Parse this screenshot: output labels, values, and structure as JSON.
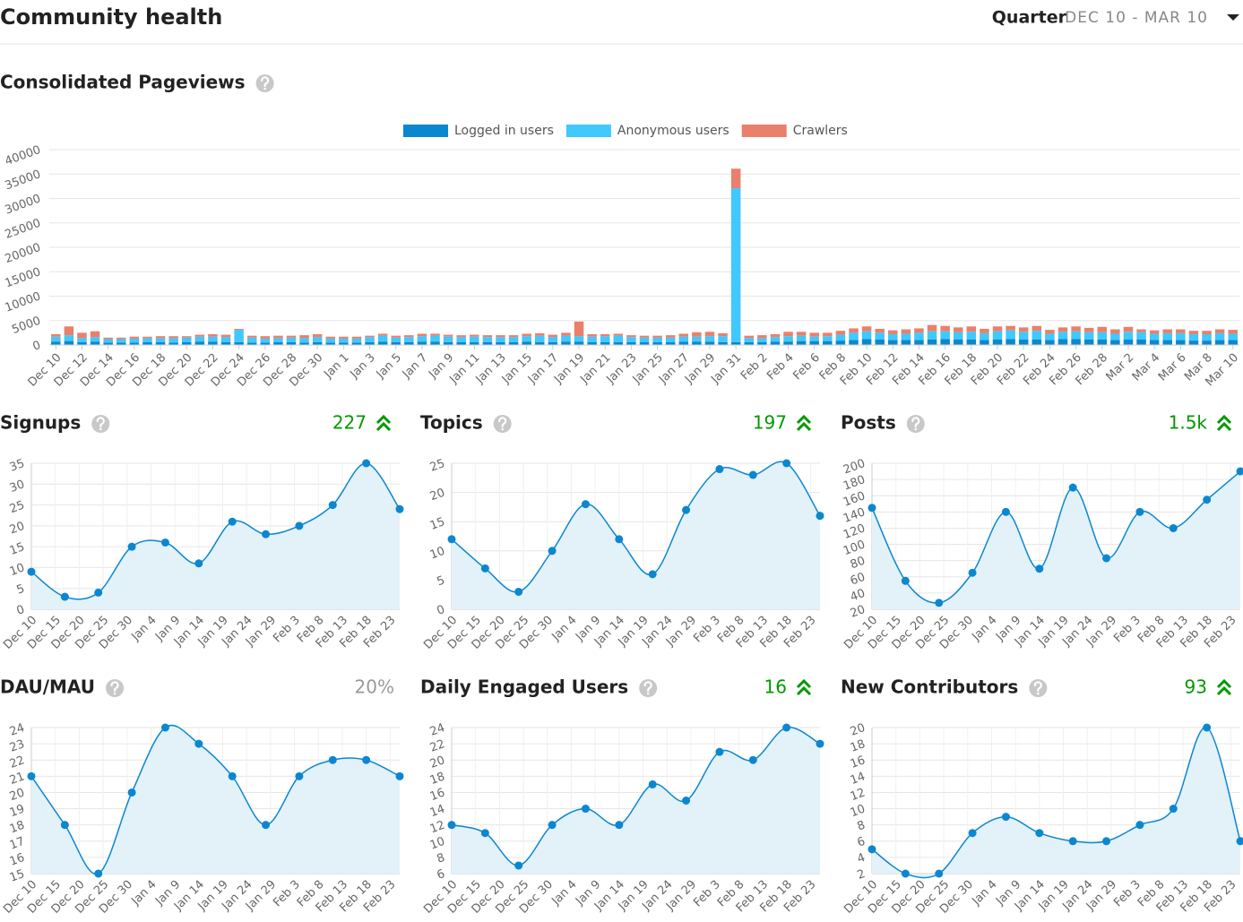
{
  "header": {
    "title": "Community health",
    "period_label": "Quarter",
    "period": "DEC 10 - MAR 10"
  },
  "chart_data": [
    {
      "type": "stacked_bar",
      "title": "Consolidated Pageviews",
      "legend": "top",
      "categories": [
        "Dec 10",
        null,
        "Dec 12",
        null,
        "Dec 14",
        null,
        "Dec 16",
        null,
        "Dec 18",
        null,
        "Dec 20",
        null,
        "Dec 22",
        null,
        "Dec 24",
        null,
        "Dec 26",
        null,
        "Dec 28",
        null,
        "Dec 30",
        null,
        "Jan 1",
        null,
        "Jan 3",
        null,
        "Jan 5",
        null,
        "Jan 7",
        null,
        "Jan 9",
        null,
        "Jan 11",
        null,
        "Jan 13",
        null,
        "Jan 15",
        null,
        "Jan 17",
        null,
        "Jan 19",
        null,
        "Jan 21",
        null,
        "Jan 23",
        null,
        "Jan 25",
        null,
        "Jan 27",
        null,
        "Jan 29",
        null,
        "Jan 31",
        null,
        "Feb 2",
        null,
        "Feb 4",
        null,
        "Feb 6",
        null,
        "Feb 8",
        null,
        "Feb 10",
        null,
        "Feb 12",
        null,
        "Feb 14",
        null,
        "Feb 16",
        null,
        "Feb 18",
        null,
        "Feb 20",
        null,
        "Feb 22",
        null,
        "Feb 24",
        null,
        "Feb 26",
        null,
        "Feb 28",
        null,
        "Mar 2",
        null,
        "Mar 4",
        null,
        "Mar 6",
        null,
        "Mar 8",
        null,
        "Mar 10"
      ],
      "series": [
        {
          "name": "Logged in users",
          "color": "#0b87d0",
          "values": [
            700,
            800,
            600,
            700,
            500,
            500,
            500,
            600,
            600,
            500,
            600,
            700,
            700,
            600,
            600,
            500,
            500,
            600,
            600,
            500,
            600,
            500,
            500,
            500,
            600,
            700,
            600,
            600,
            700,
            700,
            600,
            600,
            600,
            600,
            600,
            600,
            700,
            600,
            600,
            700,
            700,
            600,
            600,
            600,
            600,
            600,
            600,
            600,
            700,
            700,
            700,
            600,
            600,
            600,
            600,
            700,
            700,
            800,
            800,
            800,
            900,
            1000,
            1200,
            1100,
            1000,
            1000,
            1000,
            1100,
            1200,
            1100,
            1100,
            1000,
            1100,
            1200,
            1100,
            1100,
            1000,
            1200,
            1200,
            1100,
            1100,
            1000,
            1100,
            1100,
            1000,
            1000,
            1000,
            900,
            900,
            1000,
            1000
          ]
        },
        {
          "name": "Anonymous users",
          "color": "#40c8ff",
          "values": [
            1000,
            1200,
            800,
            900,
            700,
            700,
            800,
            800,
            800,
            900,
            900,
            1000,
            1000,
            1000,
            2500,
            1000,
            800,
            800,
            900,
            900,
            1000,
            800,
            800,
            800,
            1000,
            1200,
            900,
            1000,
            1100,
            1200,
            1100,
            1000,
            1100,
            1000,
            1000,
            1000,
            1100,
            1300,
            1000,
            1200,
            1100,
            1100,
            1200,
            1300,
            1000,
            900,
            900,
            900,
            1000,
            1000,
            1100,
            1200,
            31500,
            800,
            800,
            900,
            1100,
            1100,
            900,
            1000,
            1200,
            1500,
            1600,
            1400,
            1200,
            1300,
            1500,
            1700,
            1600,
            1500,
            1600,
            1400,
            1700,
            1800,
            1600,
            1800,
            1300,
            1500,
            1600,
            1500,
            1500,
            1300,
            1600,
            1500,
            1300,
            1400,
            1400,
            1300,
            1300,
            1400,
            1300
          ]
        },
        {
          "name": "Crawlers",
          "color": "#e9806c",
          "values": [
            500,
            1800,
            1100,
            1200,
            300,
            300,
            400,
            300,
            400,
            400,
            300,
            400,
            500,
            500,
            200,
            400,
            500,
            500,
            400,
            600,
            600,
            400,
            400,
            400,
            300,
            400,
            400,
            400,
            500,
            400,
            400,
            400,
            400,
            400,
            400,
            400,
            500,
            500,
            500,
            600,
            3000,
            500,
            400,
            400,
            400,
            400,
            400,
            500,
            600,
            900,
            900,
            600,
            4000,
            500,
            600,
            600,
            900,
            800,
            800,
            700,
            800,
            900,
            1000,
            800,
            800,
            900,
            900,
            1300,
            1100,
            1000,
            1100,
            900,
            1000,
            900,
            900,
            1000,
            800,
            900,
            1000,
            900,
            1100,
            900,
            1000,
            600,
            700,
            800,
            800,
            700,
            700,
            800,
            800
          ]
        }
      ],
      "ylim": [
        0,
        40000
      ],
      "yticks": [
        0,
        5000,
        10000,
        15000,
        20000,
        25000,
        30000,
        35000,
        40000
      ],
      "grid": true
    },
    {
      "type": "line",
      "title": "Signups",
      "headline": "227",
      "headline_color": "#009900",
      "trend": "up",
      "color": "#0b87d0",
      "x": [
        0,
        7,
        14,
        21,
        28,
        35,
        42,
        49,
        56,
        63,
        70,
        77
      ],
      "values": [
        9,
        3,
        4,
        15,
        16,
        11,
        21,
        18,
        20,
        25,
        35,
        24
      ],
      "xlim": [
        0,
        77
      ],
      "xticks": [
        {
          "value": 0,
          "label": "Dec 10"
        },
        {
          "value": 5,
          "label": "Dec 15"
        },
        {
          "value": 10,
          "label": "Dec 20"
        },
        {
          "value": 15,
          "label": "Dec 25"
        },
        {
          "value": 20,
          "label": "Dec 30"
        },
        {
          "value": 25,
          "label": "Jan 4"
        },
        {
          "value": 30,
          "label": "Jan 9"
        },
        {
          "value": 35,
          "label": "Jan 14"
        },
        {
          "value": 40,
          "label": "Jan 19"
        },
        {
          "value": 45,
          "label": "Jan 24"
        },
        {
          "value": 50,
          "label": "Jan 29"
        },
        {
          "value": 55,
          "label": "Feb 3"
        },
        {
          "value": 60,
          "label": "Feb 8"
        },
        {
          "value": 65,
          "label": "Feb 13"
        },
        {
          "value": 70,
          "label": "Feb 18"
        },
        {
          "value": 75,
          "label": "Feb 23"
        }
      ],
      "ylim": [
        0,
        35
      ],
      "yticks": [
        0,
        5,
        10,
        15,
        20,
        25,
        30,
        35
      ],
      "grid": true
    },
    {
      "type": "line",
      "title": "Topics",
      "headline": "197",
      "headline_color": "#009900",
      "trend": "up",
      "color": "#0b87d0",
      "x": [
        0,
        7,
        14,
        21,
        28,
        35,
        42,
        49,
        56,
        63,
        70,
        77
      ],
      "values": [
        12,
        7,
        3,
        10,
        18,
        12,
        6,
        17,
        24,
        23,
        25,
        16
      ],
      "xlim": [
        0,
        77
      ],
      "xticks": [
        {
          "value": 0,
          "label": "Dec 10"
        },
        {
          "value": 5,
          "label": "Dec 15"
        },
        {
          "value": 10,
          "label": "Dec 20"
        },
        {
          "value": 15,
          "label": "Dec 25"
        },
        {
          "value": 20,
          "label": "Dec 30"
        },
        {
          "value": 25,
          "label": "Jan 4"
        },
        {
          "value": 30,
          "label": "Jan 9"
        },
        {
          "value": 35,
          "label": "Jan 14"
        },
        {
          "value": 40,
          "label": "Jan 19"
        },
        {
          "value": 45,
          "label": "Jan 24"
        },
        {
          "value": 50,
          "label": "Jan 29"
        },
        {
          "value": 55,
          "label": "Feb 3"
        },
        {
          "value": 60,
          "label": "Feb 8"
        },
        {
          "value": 65,
          "label": "Feb 13"
        },
        {
          "value": 70,
          "label": "Feb 18"
        },
        {
          "value": 75,
          "label": "Feb 23"
        }
      ],
      "ylim": [
        0,
        25
      ],
      "yticks": [
        0,
        5,
        10,
        15,
        20,
        25
      ],
      "grid": true
    },
    {
      "type": "line",
      "title": "Posts",
      "headline": "1.5k",
      "headline_color": "#009900",
      "trend": "up",
      "color": "#0b87d0",
      "x": [
        0,
        7,
        14,
        21,
        28,
        35,
        42,
        49,
        56,
        63,
        70,
        77
      ],
      "values": [
        145,
        55,
        28,
        65,
        140,
        70,
        170,
        83,
        140,
        120,
        155,
        190
      ],
      "xlim": [
        0,
        77
      ],
      "xticks": [
        {
          "value": 0,
          "label": "Dec 10"
        },
        {
          "value": 5,
          "label": "Dec 15"
        },
        {
          "value": 10,
          "label": "Dec 20"
        },
        {
          "value": 15,
          "label": "Dec 25"
        },
        {
          "value": 20,
          "label": "Dec 30"
        },
        {
          "value": 25,
          "label": "Jan 4"
        },
        {
          "value": 30,
          "label": "Jan 9"
        },
        {
          "value": 35,
          "label": "Jan 14"
        },
        {
          "value": 40,
          "label": "Jan 19"
        },
        {
          "value": 45,
          "label": "Jan 24"
        },
        {
          "value": 50,
          "label": "Jan 29"
        },
        {
          "value": 55,
          "label": "Feb 3"
        },
        {
          "value": 60,
          "label": "Feb 8"
        },
        {
          "value": 65,
          "label": "Feb 13"
        },
        {
          "value": 70,
          "label": "Feb 18"
        },
        {
          "value": 75,
          "label": "Feb 23"
        }
      ],
      "ylim": [
        20,
        200
      ],
      "yticks": [
        20,
        40,
        60,
        80,
        100,
        120,
        140,
        160,
        180,
        200
      ],
      "grid": true
    },
    {
      "type": "line",
      "title": "DAU/MAU",
      "headline": "20%",
      "headline_color": "#999999",
      "color": "#0b87d0",
      "x": [
        0,
        7,
        14,
        21,
        28,
        35,
        42,
        49,
        56,
        63,
        70,
        77
      ],
      "values": [
        21,
        18,
        15,
        20,
        24,
        23,
        21,
        18,
        21,
        22,
        22,
        21
      ],
      "xlim": [
        0,
        77
      ],
      "xticks": [
        {
          "value": 0,
          "label": "Dec 10"
        },
        {
          "value": 5,
          "label": "Dec 15"
        },
        {
          "value": 10,
          "label": "Dec 20"
        },
        {
          "value": 15,
          "label": "Dec 25"
        },
        {
          "value": 20,
          "label": "Dec 30"
        },
        {
          "value": 25,
          "label": "Jan 4"
        },
        {
          "value": 30,
          "label": "Jan 9"
        },
        {
          "value": 35,
          "label": "Jan 14"
        },
        {
          "value": 40,
          "label": "Jan 19"
        },
        {
          "value": 45,
          "label": "Jan 24"
        },
        {
          "value": 50,
          "label": "Jan 29"
        },
        {
          "value": 55,
          "label": "Feb 3"
        },
        {
          "value": 60,
          "label": "Feb 8"
        },
        {
          "value": 65,
          "label": "Feb 13"
        },
        {
          "value": 70,
          "label": "Feb 18"
        },
        {
          "value": 75,
          "label": "Feb 23"
        }
      ],
      "ylim": [
        15,
        24
      ],
      "yticks": [
        15,
        16,
        17,
        18,
        19,
        20,
        21,
        22,
        23,
        24
      ],
      "grid": true
    },
    {
      "type": "line",
      "title": "Daily Engaged Users",
      "headline": "16",
      "headline_color": "#009900",
      "trend": "up",
      "color": "#0b87d0",
      "x": [
        0,
        7,
        14,
        21,
        28,
        35,
        42,
        49,
        56,
        63,
        70,
        77
      ],
      "values": [
        12,
        11,
        7,
        12,
        14,
        12,
        17,
        15,
        21,
        20,
        24,
        22
      ],
      "xlim": [
        0,
        77
      ],
      "xticks": [
        {
          "value": 0,
          "label": "Dec 10"
        },
        {
          "value": 5,
          "label": "Dec 15"
        },
        {
          "value": 10,
          "label": "Dec 20"
        },
        {
          "value": 15,
          "label": "Dec 25"
        },
        {
          "value": 20,
          "label": "Dec 30"
        },
        {
          "value": 25,
          "label": "Jan 4"
        },
        {
          "value": 30,
          "label": "Jan 9"
        },
        {
          "value": 35,
          "label": "Jan 14"
        },
        {
          "value": 40,
          "label": "Jan 19"
        },
        {
          "value": 45,
          "label": "Jan 24"
        },
        {
          "value": 50,
          "label": "Jan 29"
        },
        {
          "value": 55,
          "label": "Feb 3"
        },
        {
          "value": 60,
          "label": "Feb 8"
        },
        {
          "value": 65,
          "label": "Feb 13"
        },
        {
          "value": 70,
          "label": "Feb 18"
        },
        {
          "value": 75,
          "label": "Feb 23"
        }
      ],
      "ylim": [
        6,
        24
      ],
      "yticks": [
        6,
        8,
        10,
        12,
        14,
        16,
        18,
        20,
        22,
        24
      ],
      "grid": true
    },
    {
      "type": "line",
      "title": "New Contributors",
      "headline": "93",
      "headline_color": "#009900",
      "trend": "up",
      "color": "#0b87d0",
      "x": [
        0,
        7,
        14,
        21,
        28,
        35,
        42,
        49,
        56,
        63,
        70,
        77
      ],
      "values": [
        5,
        2,
        2,
        7,
        9,
        7,
        6,
        6,
        8,
        10,
        20,
        6
      ],
      "xlim": [
        0,
        77
      ],
      "xticks": [
        {
          "value": 0,
          "label": "Dec 10"
        },
        {
          "value": 5,
          "label": "Dec 15"
        },
        {
          "value": 10,
          "label": "Dec 20"
        },
        {
          "value": 15,
          "label": "Dec 25"
        },
        {
          "value": 20,
          "label": "Dec 30"
        },
        {
          "value": 25,
          "label": "Jan 4"
        },
        {
          "value": 30,
          "label": "Jan 9"
        },
        {
          "value": 35,
          "label": "Jan 14"
        },
        {
          "value": 40,
          "label": "Jan 19"
        },
        {
          "value": 45,
          "label": "Jan 24"
        },
        {
          "value": 50,
          "label": "Jan 29"
        },
        {
          "value": 55,
          "label": "Feb 3"
        },
        {
          "value": 60,
          "label": "Feb 8"
        },
        {
          "value": 65,
          "label": "Feb 13"
        },
        {
          "value": 70,
          "label": "Feb 18"
        },
        {
          "value": 75,
          "label": "Feb 23"
        }
      ],
      "ylim": [
        2,
        20
      ],
      "yticks": [
        2,
        4,
        6,
        8,
        10,
        12,
        14,
        16,
        18,
        20
      ],
      "grid": true
    }
  ]
}
